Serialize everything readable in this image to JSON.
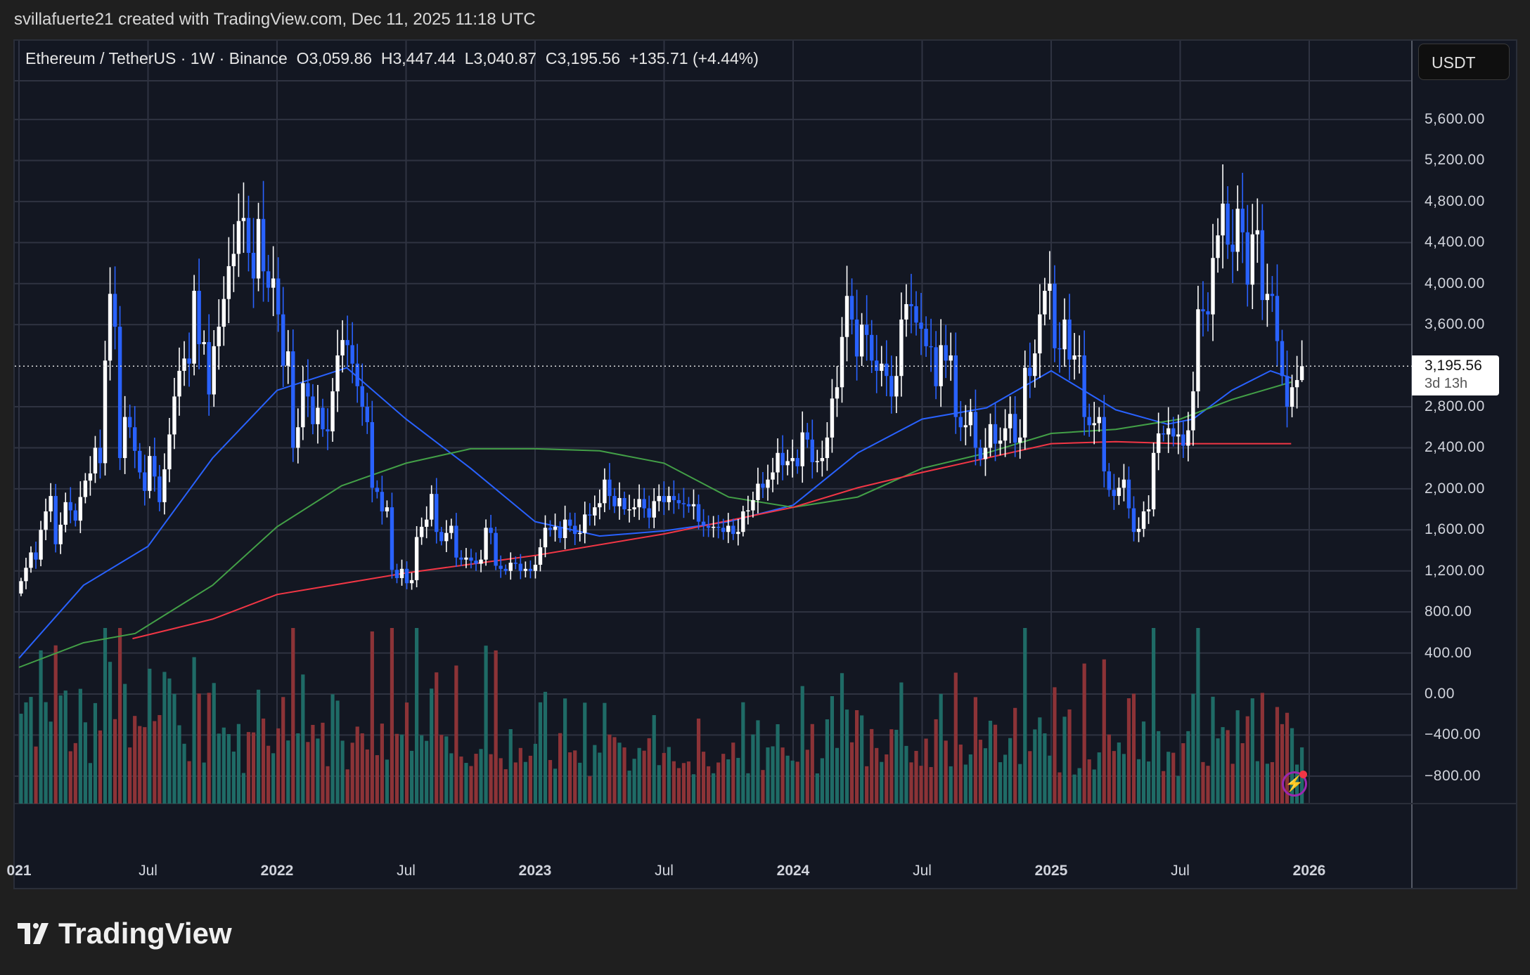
{
  "header": {
    "title": "svillafuerte21 created with TradingView.com, Dec 11, 2025 11:18 UTC"
  },
  "legend": {
    "symbol": "Ethereum / TetherUS · 1W · Binance",
    "open": "O3,059.86",
    "high": "H3,447.44",
    "low": "L3,040.87",
    "close": "C3,195.56",
    "change": "+135.71 (+4.44%)"
  },
  "currency_button": "USDT",
  "last_price": {
    "price": "3,195.56",
    "countdown": "3d 13h"
  },
  "logo": {
    "text": "TradingView"
  },
  "colors": {
    "up": "#ffffff",
    "down": "#2962ff",
    "vol_up": "#1f6b66",
    "vol_down": "#8c3337",
    "ma_blue": "#2962ff",
    "ma_green": "#43a047",
    "ma_red": "#f23645",
    "grid": "#2f3341",
    "background": "#131722"
  },
  "chart_data": {
    "type": "candlestick",
    "interval": "1W",
    "start_week": "2021-01-04",
    "y_ticks": [
      "5,600.00",
      "5,200.00",
      "4,800.00",
      "4,400.00",
      "4,000.00",
      "3,600.00",
      "2,800.00",
      "2,400.00",
      "2,000.00",
      "1,600.00",
      "1,200.00",
      "800.00",
      "400.00",
      "0.00",
      "−400.00",
      "−800.00"
    ],
    "y_tick_values": [
      5600,
      5200,
      4800,
      4400,
      4000,
      3600,
      2800,
      2400,
      2000,
      1600,
      1200,
      800,
      400,
      0,
      -400,
      -800
    ],
    "x_ticks": [
      {
        "label": "021",
        "t": 2021.0,
        "year": true
      },
      {
        "label": "Jul",
        "t": 2021.5
      },
      {
        "label": "2022",
        "t": 2022.0,
        "year": true
      },
      {
        "label": "Jul",
        "t": 2022.5
      },
      {
        "label": "2023",
        "t": 2023.0,
        "year": true
      },
      {
        "label": "Jul",
        "t": 2023.5
      },
      {
        "label": "2024",
        "t": 2024.0,
        "year": true
      },
      {
        "label": "Jul",
        "t": 2024.5
      },
      {
        "label": "2025",
        "t": 2025.0,
        "year": true
      },
      {
        "label": "Jul",
        "t": 2025.5
      },
      {
        "label": "2026",
        "t": 2026.0,
        "year": true
      }
    ],
    "first_open": 980,
    "weekly_closes": [
      1100,
      1230,
      1380,
      1310,
      1600,
      1780,
      1930,
      1460,
      1650,
      1870,
      1790,
      1690,
      1920,
      2080,
      2150,
      2400,
      2250,
      3250,
      3900,
      3580,
      2300,
      2700,
      2600,
      2370,
      2160,
      1980,
      2320,
      2120,
      1870,
      2190,
      2530,
      2900,
      3150,
      3270,
      3220,
      3930,
      3410,
      3430,
      2920,
      3390,
      3580,
      3850,
      4170,
      4290,
      4610,
      4640,
      4300,
      4050,
      4630,
      4120,
      3960,
      4050,
      3700,
      3200,
      3340,
      2400,
      2600,
      3030,
      2900,
      2630,
      2790,
      2580,
      2560,
      2950,
      3300,
      3450,
      3400,
      3220,
      3000,
      2800,
      2650,
      2010,
      1970,
      1780,
      1820,
      1210,
      1130,
      1220,
      1080,
      1110,
      1530,
      1630,
      1700,
      1950,
      1580,
      1490,
      1570,
      1640,
      1330,
      1310,
      1330,
      1300,
      1270,
      1310,
      1620,
      1570,
      1250,
      1220,
      1200,
      1280,
      1270,
      1200,
      1220,
      1200,
      1260,
      1430,
      1620,
      1600,
      1630,
      1520,
      1700,
      1640,
      1560,
      1570,
      1750,
      1740,
      1820,
      1860,
      2090,
      1930,
      1830,
      1910,
      1800,
      1800,
      1820,
      1900,
      1810,
      1720,
      1880,
      1930,
      1870,
      1930,
      1890,
      1860,
      1850,
      1830,
      1850,
      1680,
      1640,
      1620,
      1630,
      1620,
      1580,
      1640,
      1560,
      1580,
      1780,
      1790,
      1890,
      2050,
      2010,
      2090,
      2160,
      2350,
      2230,
      2270,
      2300,
      2220,
      2550,
      2480,
      2260,
      2270,
      2300,
      2500,
      2880,
      2990,
      3480,
      3880,
      3650,
      3290,
      3600,
      3500,
      3250,
      3150,
      3220,
      3100,
      2900,
      3100,
      3650,
      3800,
      3780,
      3620,
      3560,
      3390,
      3380,
      3000,
      3400,
      3250,
      3300,
      2700,
      2600,
      2620,
      2750,
      2400,
      2290,
      2400,
      2630,
      2440,
      2470,
      2590,
      2730,
      2450,
      2500,
      3180,
      3100,
      3320,
      3700,
      3930,
      4000,
      3370,
      3360,
      3650,
      3260,
      3300,
      3300,
      2700,
      2620,
      2640,
      2700,
      2170,
      1990,
      1930,
      2010,
      2090,
      1810,
      1580,
      1610,
      1780,
      1800,
      2350,
      2540,
      2530,
      2590,
      2510,
      2530,
      2420,
      2570,
      2950,
      3750,
      3730,
      3700,
      4250,
      4470,
      4780,
      4380,
      4310,
      4730,
      4500,
      3990,
      4480,
      4520,
      3840,
      3900,
      3880,
      3440,
      3100,
      2800,
      2990,
      3059.86
    ],
    "last_candle": {
      "open": 3059.86,
      "high": 3447.44,
      "low": 3040.87,
      "close": 3195.56
    },
    "current_price": 3195.56,
    "moving_averages": [
      {
        "color": "blue",
        "points": [
          [
            2021.0,
            350
          ],
          [
            2021.25,
            1060
          ],
          [
            2021.5,
            1440
          ],
          [
            2021.75,
            2300
          ],
          [
            2022.0,
            2960
          ],
          [
            2022.27,
            3180
          ],
          [
            2022.5,
            2680
          ],
          [
            2022.75,
            2200
          ],
          [
            2023.0,
            1680
          ],
          [
            2023.25,
            1540
          ],
          [
            2023.5,
            1590
          ],
          [
            2023.75,
            1680
          ],
          [
            2024.0,
            1840
          ],
          [
            2024.25,
            2350
          ],
          [
            2024.5,
            2680
          ],
          [
            2024.75,
            2790
          ],
          [
            2025.0,
            3150
          ],
          [
            2025.25,
            2770
          ],
          [
            2025.45,
            2630
          ],
          [
            2025.55,
            2680
          ],
          [
            2025.7,
            2960
          ],
          [
            2025.85,
            3150
          ],
          [
            2025.93,
            3080
          ]
        ]
      },
      {
        "color": "green",
        "points": [
          [
            2021.0,
            260
          ],
          [
            2021.25,
            500
          ],
          [
            2021.45,
            590
          ],
          [
            2021.75,
            1060
          ],
          [
            2022.0,
            1630
          ],
          [
            2022.25,
            2030
          ],
          [
            2022.5,
            2250
          ],
          [
            2022.75,
            2390
          ],
          [
            2023.0,
            2390
          ],
          [
            2023.25,
            2370
          ],
          [
            2023.5,
            2250
          ],
          [
            2023.75,
            1920
          ],
          [
            2024.0,
            1820
          ],
          [
            2024.25,
            1920
          ],
          [
            2024.5,
            2200
          ],
          [
            2024.75,
            2350
          ],
          [
            2025.0,
            2540
          ],
          [
            2025.25,
            2580
          ],
          [
            2025.5,
            2680
          ],
          [
            2025.7,
            2870
          ],
          [
            2025.93,
            3040
          ]
        ]
      },
      {
        "color": "red",
        "points": [
          [
            2021.44,
            540
          ],
          [
            2021.75,
            730
          ],
          [
            2022.0,
            970
          ],
          [
            2022.5,
            1180
          ],
          [
            2023.0,
            1350
          ],
          [
            2023.5,
            1560
          ],
          [
            2024.0,
            1820
          ],
          [
            2024.25,
            2010
          ],
          [
            2024.5,
            2160
          ],
          [
            2025.0,
            2440
          ],
          [
            2025.25,
            2460
          ],
          [
            2025.5,
            2440
          ],
          [
            2025.93,
            2440
          ]
        ]
      }
    ]
  }
}
